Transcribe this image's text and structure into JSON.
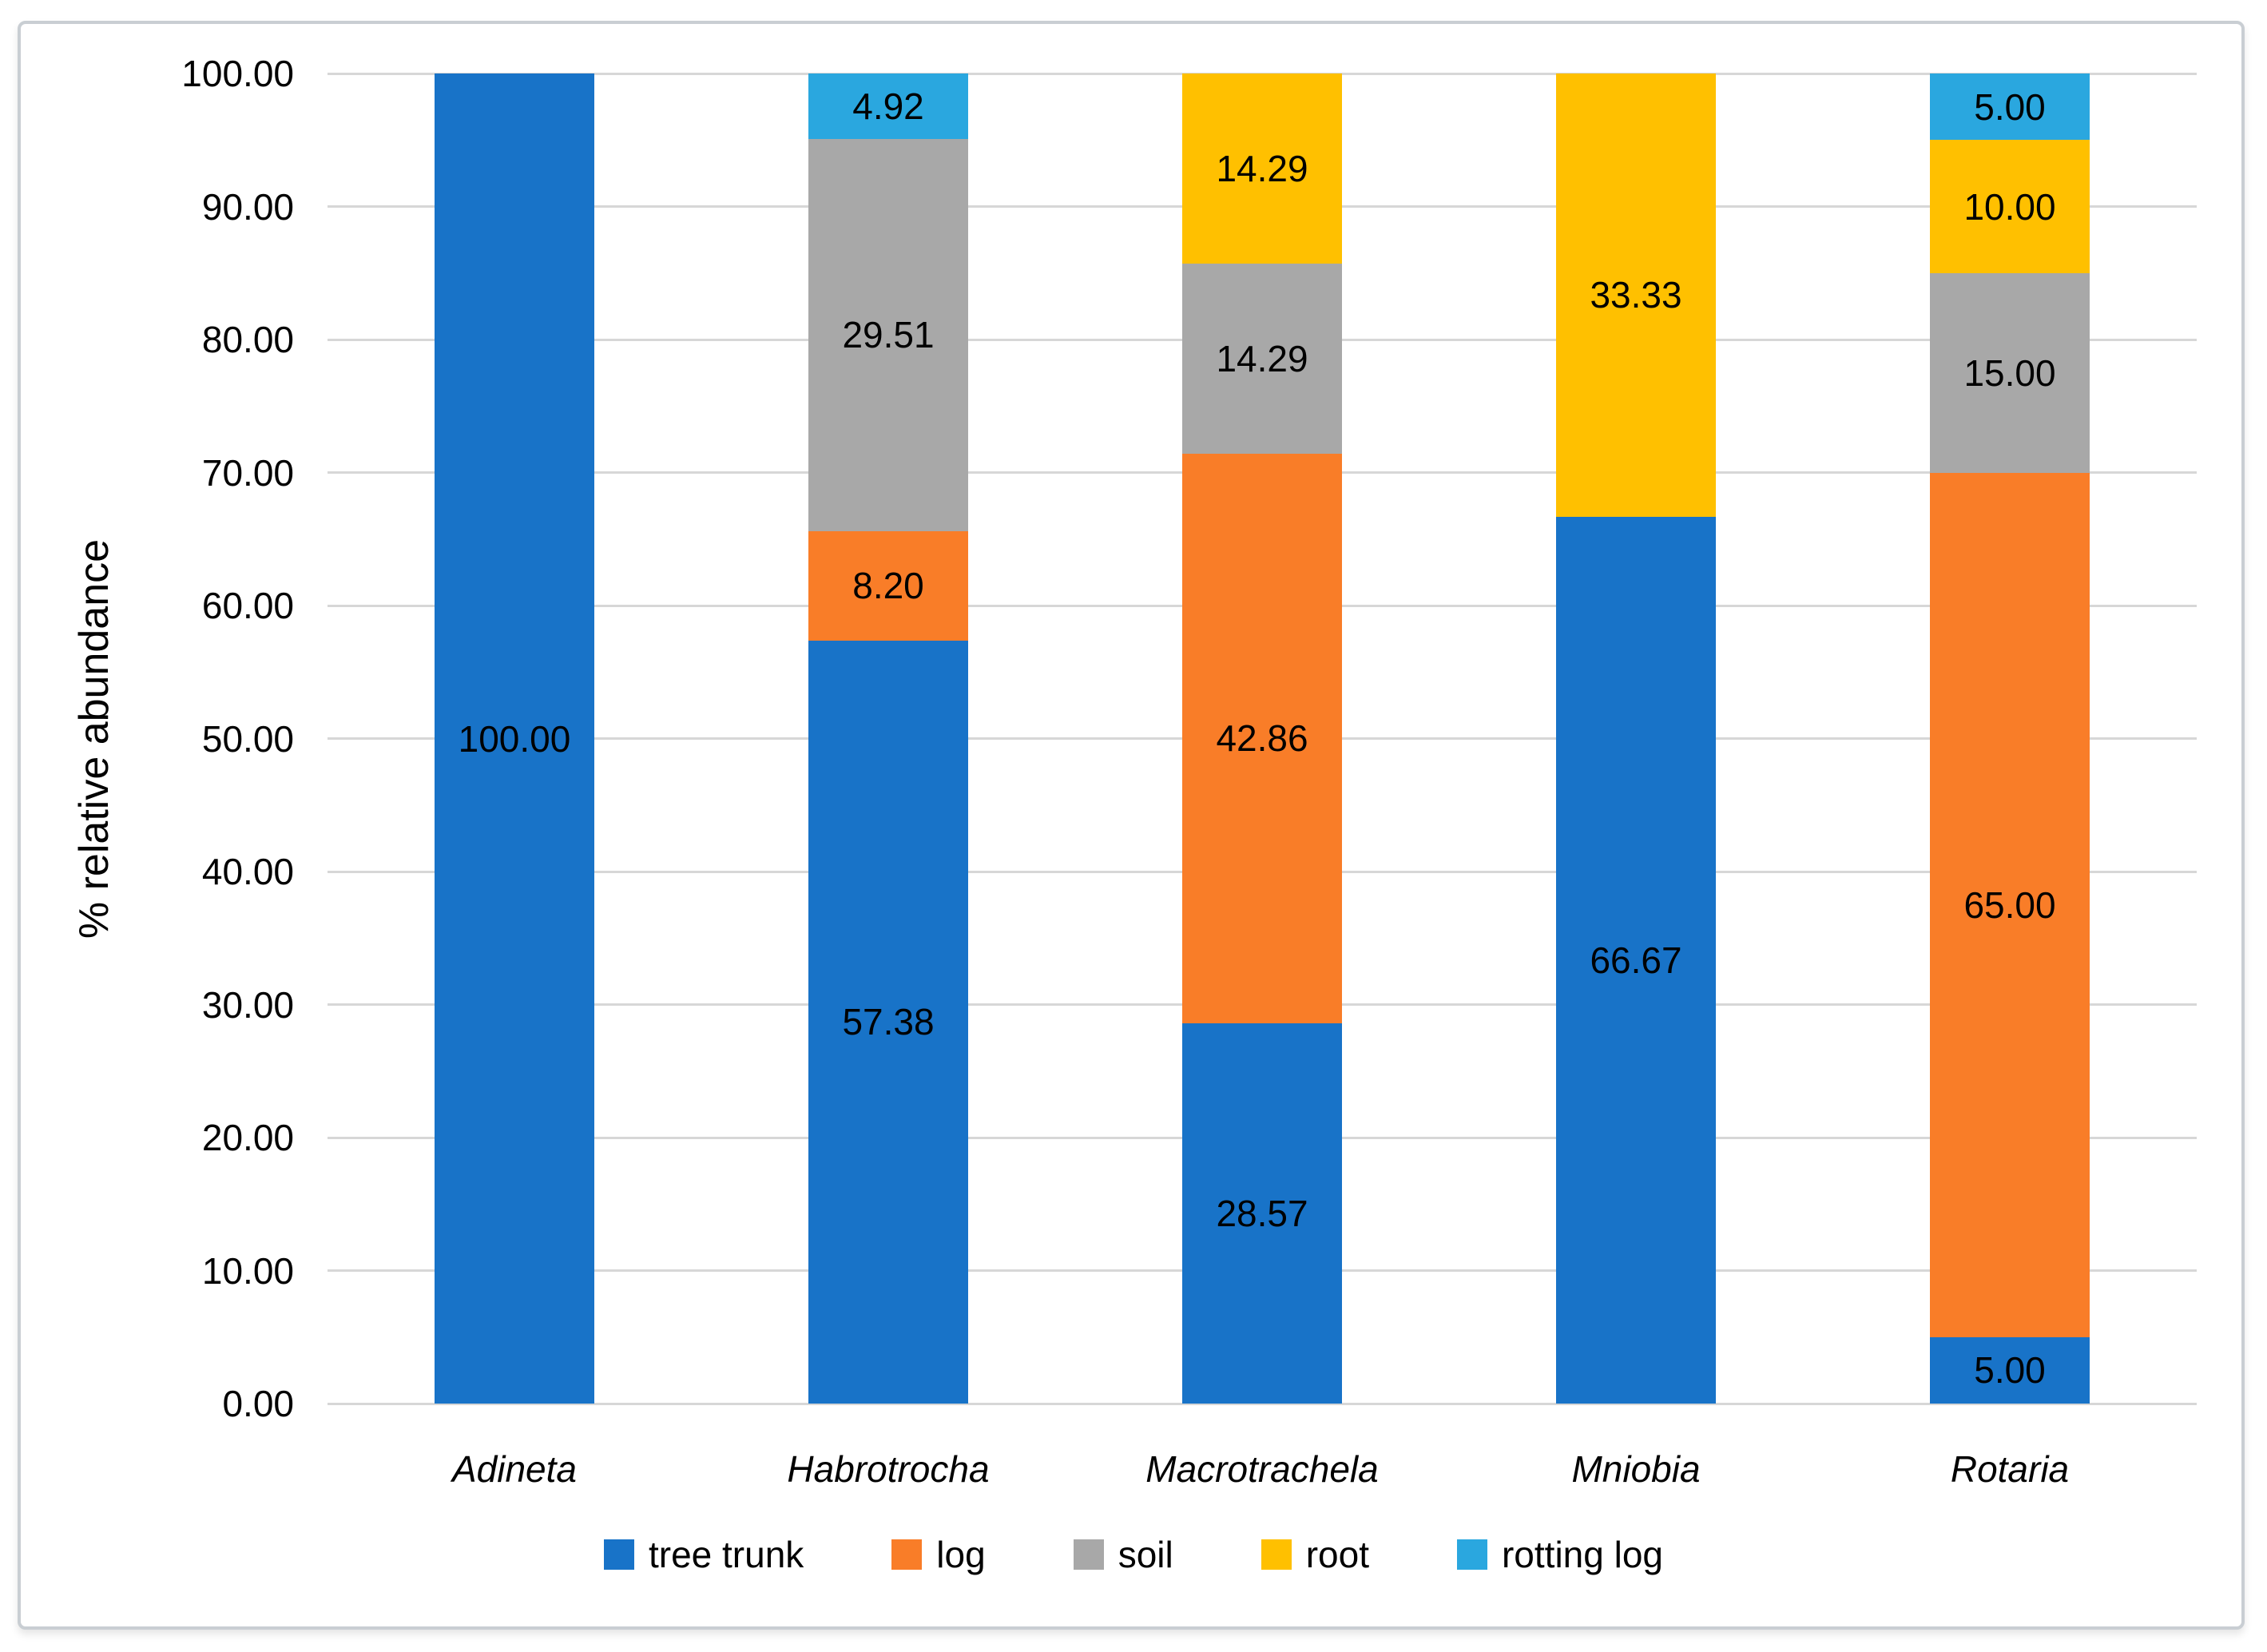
{
  "chart_data": {
    "type": "bar",
    "stacked": true,
    "title": "",
    "xlabel": "",
    "ylabel": "% relative abundance",
    "ylim": [
      0,
      100
    ],
    "grid": true,
    "legend_position": "bottom",
    "ytick_labels": [
      "0.00",
      "10.00",
      "20.00",
      "30.00",
      "40.00",
      "50.00",
      "60.00",
      "70.00",
      "80.00",
      "90.00",
      "100.00"
    ],
    "categories": [
      "Adineta",
      "Habrotrocha",
      "Macrotrachela",
      "Mniobia",
      "Rotaria"
    ],
    "series": [
      {
        "name": "tree trunk",
        "color": "#1873C8",
        "values": [
          100.0,
          57.38,
          28.57,
          66.67,
          5.0
        ],
        "labels": [
          "100.00",
          "57.38",
          "28.57",
          "66.67",
          "5.00"
        ]
      },
      {
        "name": "log",
        "color": "#F97D28",
        "values": [
          0,
          8.2,
          42.86,
          0,
          65.0
        ],
        "labels": [
          "",
          "8.20",
          "42.86",
          "",
          "65.00"
        ]
      },
      {
        "name": "soil",
        "color": "#A8A8A8",
        "values": [
          0,
          29.51,
          14.29,
          0,
          15.0
        ],
        "labels": [
          "",
          "29.51",
          "14.29",
          "",
          "15.00"
        ]
      },
      {
        "name": "root",
        "color": "#FFC000",
        "values": [
          0,
          0,
          14.29,
          33.33,
          10.0
        ],
        "labels": [
          "",
          "",
          "14.29",
          "33.33",
          "10.00"
        ]
      },
      {
        "name": "rotting log",
        "color": "#2AA7DF",
        "values": [
          0,
          4.92,
          0,
          0,
          5.0
        ],
        "labels": [
          "",
          "4.92",
          "",
          "",
          "5.00"
        ]
      }
    ]
  }
}
